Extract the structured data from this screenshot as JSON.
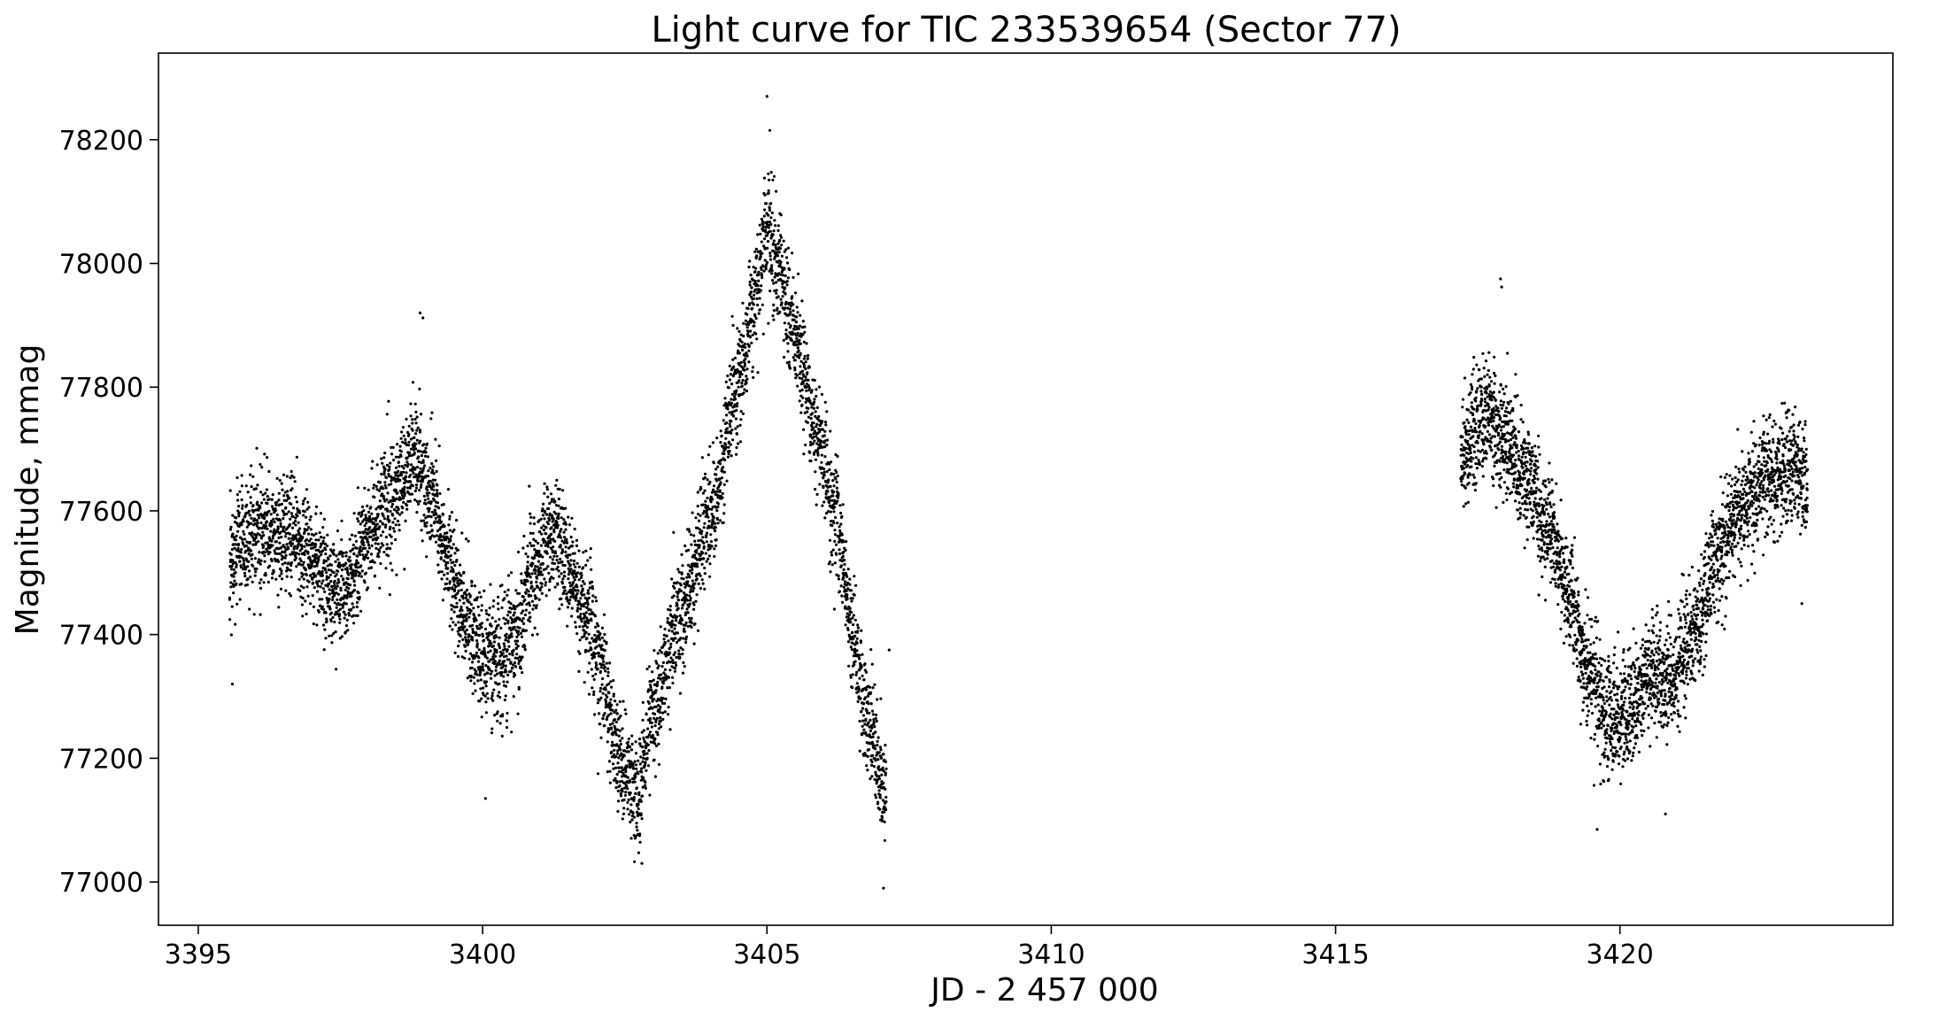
{
  "chart_data": {
    "type": "scatter",
    "title": "Light curve for TIC 233539654 (Sector 77)",
    "xlabel": "JD - 2 457 000",
    "ylabel": "Magnitude, mmag",
    "xlim": [
      3394.3,
      3424.8
    ],
    "ylim": [
      76930,
      78340
    ],
    "xticks": [
      3395,
      3400,
      3405,
      3410,
      3415,
      3420
    ],
    "xtick_labels": [
      "3395",
      "3400",
      "3405",
      "3410",
      "3415",
      "3420"
    ],
    "yticks": [
      77000,
      77200,
      77400,
      77600,
      77800,
      78000,
      78200
    ],
    "ytick_labels": [
      "77000",
      "77200",
      "77400",
      "77600",
      "77800",
      "78000",
      "78200"
    ],
    "grid": false,
    "marker_color": "#000000",
    "series": [
      {
        "segments": [
          {
            "x_range": [
              3395.55,
              3407.1
            ],
            "trend": [
              [
                3395.55,
                77510
              ],
              [
                3395.8,
                77560
              ],
              [
                3396.2,
                77575
              ],
              [
                3396.6,
                77560
              ],
              [
                3397.0,
                77520
              ],
              [
                3397.3,
                77480
              ],
              [
                3397.6,
                77470
              ],
              [
                3398.0,
                77560
              ],
              [
                3398.4,
                77620
              ],
              [
                3398.8,
                77690
              ],
              [
                3399.1,
                77620
              ],
              [
                3399.4,
                77520
              ],
              [
                3399.7,
                77430
              ],
              [
                3400.0,
                77370
              ],
              [
                3400.3,
                77350
              ],
              [
                3400.6,
                77400
              ],
              [
                3400.9,
                77500
              ],
              [
                3401.2,
                77570
              ],
              [
                3401.5,
                77510
              ],
              [
                3401.8,
                77450
              ],
              [
                3402.1,
                77330
              ],
              [
                3402.3,
                77240
              ],
              [
                3402.5,
                77180
              ],
              [
                3402.7,
                77140
              ],
              [
                3403.0,
                77280
              ],
              [
                3403.5,
                77440
              ],
              [
                3404.0,
                77600
              ],
              [
                3404.5,
                77800
              ],
              [
                3404.8,
                77950
              ],
              [
                3405.0,
                78060
              ],
              [
                3405.2,
                78000
              ],
              [
                3405.5,
                77870
              ],
              [
                3405.9,
                77720
              ],
              [
                3406.2,
                77590
              ],
              [
                3406.5,
                77400
              ],
              [
                3406.8,
                77250
              ],
              [
                3407.1,
                77150
              ]
            ],
            "scatter_mmag": 45,
            "count": 5200
          },
          {
            "x_range": [
              3417.2,
              3423.3
            ],
            "trend": [
              [
                3417.2,
                77680
              ],
              [
                3417.6,
                77760
              ],
              [
                3418.0,
                77710
              ],
              [
                3418.4,
                77640
              ],
              [
                3418.8,
                77560
              ],
              [
                3419.1,
                77470
              ],
              [
                3419.4,
                77360
              ],
              [
                3419.8,
                77260
              ],
              [
                3420.1,
                77270
              ],
              [
                3420.5,
                77330
              ],
              [
                3420.9,
                77330
              ],
              [
                3421.3,
                77400
              ],
              [
                3421.7,
                77520
              ],
              [
                3422.1,
                77600
              ],
              [
                3422.6,
                77650
              ],
              [
                3423.0,
                77670
              ],
              [
                3423.3,
                77640
              ]
            ],
            "scatter_mmag": 45,
            "count": 3000
          }
        ],
        "outliers": [
          [
            3398.9,
            77920
          ],
          [
            3398.95,
            77912
          ],
          [
            3405.0,
            78270
          ],
          [
            3405.05,
            78215
          ],
          [
            3417.9,
            77975
          ],
          [
            3417.92,
            77962
          ],
          [
            3395.6,
            77320
          ],
          [
            3400.05,
            77135
          ],
          [
            3407.05,
            76990
          ],
          [
            3402.8,
            77030
          ],
          [
            3419.6,
            77085
          ],
          [
            3420.8,
            77110
          ],
          [
            3407.15,
            77375
          ],
          [
            3423.2,
            77450
          ]
        ]
      }
    ]
  }
}
